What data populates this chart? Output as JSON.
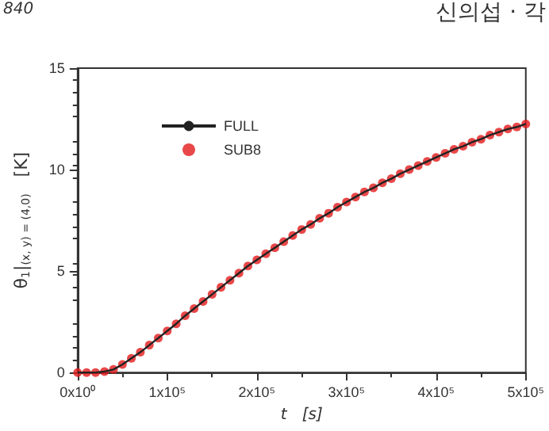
{
  "chart_data": {
    "type": "line",
    "xlabel": "t   [s]",
    "ylabel": "θ$_{1}$|$_{(x, y) = (4,0)}$   [K]",
    "annotations": [
      "840",
      "신의섭 · 각"
    ],
    "x": [
      0,
      10000,
      20000,
      30000,
      40000,
      50000,
      60000,
      70000,
      80000,
      90000,
      100000,
      110000,
      120000,
      130000,
      140000,
      150000,
      160000,
      170000,
      180000,
      190000,
      200000,
      210000,
      220000,
      230000,
      240000,
      250000,
      260000,
      270000,
      280000,
      290000,
      300000,
      310000,
      320000,
      330000,
      340000,
      350000,
      360000,
      370000,
      380000,
      390000,
      400000,
      410000,
      420000,
      430000,
      440000,
      450000,
      460000,
      470000,
      480000,
      490000,
      500000
    ],
    "series": [
      {
        "name": "FULL",
        "color": "#222222",
        "values": [
          0,
          0,
          0,
          0.05,
          0.15,
          0.4,
          0.7,
          1.0,
          1.35,
          1.7,
          2.05,
          2.4,
          2.8,
          3.15,
          3.5,
          3.85,
          4.2,
          4.55,
          4.9,
          5.25,
          5.55,
          5.85,
          6.15,
          6.45,
          6.75,
          7.05,
          7.3,
          7.6,
          7.85,
          8.15,
          8.4,
          8.65,
          8.9,
          9.1,
          9.35,
          9.55,
          9.8,
          10.0,
          10.2,
          10.4,
          10.6,
          10.8,
          11.0,
          11.15,
          11.35,
          11.5,
          11.7,
          11.85,
          12.0,
          12.1,
          12.25
        ]
      },
      {
        "name": "SUB8",
        "type": "scatter",
        "marker": "circle",
        "color": "#e41a1c",
        "values": [
          0,
          0,
          0,
          0.05,
          0.15,
          0.4,
          0.7,
          1.0,
          1.35,
          1.7,
          2.05,
          2.4,
          2.8,
          3.15,
          3.5,
          3.85,
          4.2,
          4.55,
          4.9,
          5.25,
          5.55,
          5.85,
          6.15,
          6.45,
          6.75,
          7.05,
          7.3,
          7.6,
          7.85,
          8.15,
          8.4,
          8.65,
          8.9,
          9.1,
          9.35,
          9.55,
          9.8,
          10.0,
          10.2,
          10.4,
          10.6,
          10.8,
          11.0,
          11.15,
          11.35,
          11.5,
          11.7,
          11.85,
          12.0,
          12.1,
          12.25
        ]
      }
    ],
    "xlim": [
      0,
      500000
    ],
    "xticks": [
      {
        "value": 0,
        "label": "0x10⁰"
      },
      {
        "value": 100000,
        "label": "1x10⁵"
      },
      {
        "value": 200000,
        "label": "2x10⁵"
      },
      {
        "value": 300000,
        "label": "3x10⁵"
      },
      {
        "value": 400000,
        "label": "4x10⁵"
      },
      {
        "value": 500000,
        "label": "5x10⁵"
      }
    ],
    "ylim": [
      0,
      15
    ],
    "yticks": [
      0,
      5,
      10,
      15
    ],
    "legend": "top left",
    "grid": false,
    "line_style": "solid"
  }
}
